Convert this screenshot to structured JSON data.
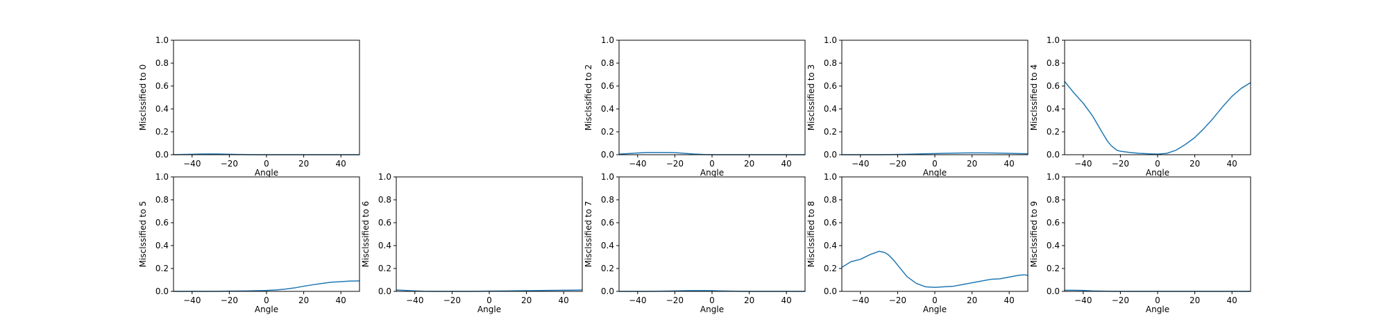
{
  "chart_data": [
    {
      "type": "line",
      "xlabel": "Angle",
      "ylabel": "Misclssified to 0",
      "xlim": [
        -50,
        50
      ],
      "ylim": [
        0,
        1
      ],
      "xticks": [
        -40,
        -20,
        0,
        20,
        40
      ],
      "yticks": [
        0,
        0.2,
        0.4,
        0.6,
        0.8,
        1.0
      ],
      "series": [
        {
          "color": "#1f77b4",
          "x": [
            -50,
            -45,
            -40,
            -35,
            -30,
            -25,
            -20,
            -15,
            -10,
            -5,
            0,
            5,
            10,
            15,
            20,
            25,
            30,
            35,
            40,
            45,
            50
          ],
          "y": [
            0.0,
            0.002,
            0.004,
            0.006,
            0.007,
            0.006,
            0.004,
            0.002,
            0.001,
            0.0,
            0.0,
            0.0,
            0.0,
            0.0,
            0.0,
            0.0,
            0.0,
            0.0,
            0.0,
            0.0,
            0.0
          ]
        }
      ]
    },
    null,
    {
      "type": "line",
      "xlabel": "Angle",
      "ylabel": "Misclssified to 2",
      "xlim": [
        -50,
        50
      ],
      "ylim": [
        0,
        1
      ],
      "xticks": [
        -40,
        -20,
        0,
        20,
        40
      ],
      "yticks": [
        0,
        0.2,
        0.4,
        0.6,
        0.8,
        1.0
      ],
      "series": [
        {
          "color": "#1f77b4",
          "x": [
            -50,
            -45,
            -40,
            -35,
            -30,
            -25,
            -20,
            -15,
            -10,
            -5,
            0,
            5,
            10,
            15,
            20,
            25,
            30,
            35,
            40,
            45,
            50
          ],
          "y": [
            0.005,
            0.01,
            0.015,
            0.02,
            0.02,
            0.02,
            0.018,
            0.012,
            0.006,
            0.002,
            0.0,
            0.0,
            0.0,
            0.0,
            0.0,
            0.0,
            0.0,
            0.0,
            0.0,
            0.0,
            0.0
          ]
        }
      ]
    },
    {
      "type": "line",
      "xlabel": "Angle",
      "ylabel": "Misclssified to 3",
      "xlim": [
        -50,
        50
      ],
      "ylim": [
        0,
        1
      ],
      "xticks": [
        -40,
        -20,
        0,
        20,
        40
      ],
      "yticks": [
        0,
        0.2,
        0.4,
        0.6,
        0.8,
        1.0
      ],
      "series": [
        {
          "color": "#1f77b4",
          "x": [
            -50,
            -45,
            -40,
            -35,
            -30,
            -25,
            -20,
            -15,
            -10,
            -5,
            0,
            5,
            10,
            15,
            20,
            25,
            30,
            35,
            40,
            45,
            50
          ],
          "y": [
            0.0,
            0.0,
            0.0,
            0.0,
            0.0,
            0.001,
            0.002,
            0.004,
            0.006,
            0.008,
            0.01,
            0.012,
            0.014,
            0.015,
            0.016,
            0.016,
            0.015,
            0.014,
            0.012,
            0.01,
            0.008
          ]
        }
      ]
    },
    {
      "type": "line",
      "xlabel": "Angle",
      "ylabel": "Misclssified to 4",
      "xlim": [
        -50,
        50
      ],
      "ylim": [
        0,
        1
      ],
      "xticks": [
        -40,
        -20,
        0,
        20,
        40
      ],
      "yticks": [
        0,
        0.2,
        0.4,
        0.6,
        0.8,
        1.0
      ],
      "series": [
        {
          "color": "#1f77b4",
          "x": [
            -50,
            -45,
            -40,
            -35,
            -30,
            -27,
            -25,
            -22,
            -20,
            -15,
            -10,
            -5,
            0,
            5,
            10,
            15,
            20,
            25,
            30,
            35,
            40,
            45,
            50
          ],
          "y": [
            0.64,
            0.54,
            0.45,
            0.34,
            0.2,
            0.12,
            0.08,
            0.04,
            0.03,
            0.02,
            0.012,
            0.008,
            0.005,
            0.012,
            0.04,
            0.09,
            0.15,
            0.23,
            0.32,
            0.42,
            0.51,
            0.58,
            0.63
          ]
        }
      ]
    },
    {
      "type": "line",
      "xlabel": "Angle",
      "ylabel": "Misclssified to 5",
      "xlim": [
        -50,
        50
      ],
      "ylim": [
        0,
        1
      ],
      "xticks": [
        -40,
        -20,
        0,
        20,
        40
      ],
      "yticks": [
        0,
        0.2,
        0.4,
        0.6,
        0.8,
        1.0
      ],
      "series": [
        {
          "color": "#1f77b4",
          "x": [
            -50,
            -45,
            -40,
            -35,
            -30,
            -25,
            -20,
            -15,
            -10,
            -5,
            0,
            5,
            10,
            15,
            20,
            25,
            30,
            35,
            40,
            45,
            50
          ],
          "y": [
            0.0,
            0.0,
            0.0,
            0.0,
            0.0,
            0.001,
            0.002,
            0.003,
            0.004,
            0.006,
            0.008,
            0.012,
            0.02,
            0.03,
            0.045,
            0.058,
            0.07,
            0.08,
            0.085,
            0.09,
            0.092
          ]
        }
      ]
    },
    {
      "type": "line",
      "xlabel": "Angle",
      "ylabel": "Misclssified to 6",
      "xlim": [
        -50,
        50
      ],
      "ylim": [
        0,
        1
      ],
      "xticks": [
        -40,
        -20,
        0,
        20,
        40
      ],
      "yticks": [
        0,
        0.2,
        0.4,
        0.6,
        0.8,
        1.0
      ],
      "series": [
        {
          "color": "#1f77b4",
          "x": [
            -50,
            -45,
            -40,
            -35,
            -30,
            -25,
            -20,
            -15,
            -10,
            -5,
            0,
            5,
            10,
            15,
            20,
            25,
            30,
            35,
            40,
            45,
            50
          ],
          "y": [
            0.012,
            0.008,
            0.004,
            0.001,
            0.0,
            0.0,
            0.0,
            0.0,
            0.0,
            0.001,
            0.002,
            0.003,
            0.004,
            0.005,
            0.006,
            0.007,
            0.008,
            0.009,
            0.01,
            0.011,
            0.012
          ]
        }
      ]
    },
    {
      "type": "line",
      "xlabel": "Angle",
      "ylabel": "Misclssified to 7",
      "xlim": [
        -50,
        50
      ],
      "ylim": [
        0,
        1
      ],
      "xticks": [
        -40,
        -20,
        0,
        20,
        40
      ],
      "yticks": [
        0,
        0.2,
        0.4,
        0.6,
        0.8,
        1.0
      ],
      "series": [
        {
          "color": "#1f77b4",
          "x": [
            -50,
            -45,
            -40,
            -35,
            -30,
            -25,
            -20,
            -15,
            -10,
            -5,
            0,
            5,
            10,
            15,
            20,
            25,
            30,
            35,
            40,
            45,
            50
          ],
          "y": [
            0.0,
            0.0,
            0.0,
            0.0,
            0.001,
            0.002,
            0.004,
            0.006,
            0.007,
            0.007,
            0.006,
            0.004,
            0.002,
            0.001,
            0.0,
            0.0,
            0.0,
            0.0,
            0.0,
            0.0,
            0.0
          ]
        }
      ]
    },
    {
      "type": "line",
      "xlabel": "Angle",
      "ylabel": "Misclssified to 8",
      "xlim": [
        -50,
        50
      ],
      "ylim": [
        0,
        1
      ],
      "xticks": [
        -40,
        -20,
        0,
        20,
        40
      ],
      "yticks": [
        0,
        0.2,
        0.4,
        0.6,
        0.8,
        1.0
      ],
      "series": [
        {
          "color": "#1f77b4",
          "x": [
            -50,
            -47,
            -45,
            -40,
            -35,
            -30,
            -27,
            -25,
            -22,
            -20,
            -17,
            -15,
            -10,
            -5,
            0,
            5,
            10,
            15,
            20,
            25,
            30,
            35,
            40,
            45,
            48,
            50
          ],
          "y": [
            0.21,
            0.24,
            0.26,
            0.28,
            0.32,
            0.35,
            0.34,
            0.32,
            0.27,
            0.23,
            0.17,
            0.13,
            0.07,
            0.04,
            0.035,
            0.04,
            0.045,
            0.06,
            0.075,
            0.09,
            0.105,
            0.11,
            0.125,
            0.14,
            0.145,
            0.14
          ]
        }
      ]
    },
    {
      "type": "line",
      "xlabel": "Angle",
      "ylabel": "Misclssified to 9",
      "xlim": [
        -50,
        50
      ],
      "ylim": [
        0,
        1
      ],
      "xticks": [
        -40,
        -20,
        0,
        20,
        40
      ],
      "yticks": [
        0,
        0.2,
        0.4,
        0.6,
        0.8,
        1.0
      ],
      "series": [
        {
          "color": "#1f77b4",
          "x": [
            -50,
            -45,
            -40,
            -35,
            -30,
            -25,
            -20,
            -15,
            -10,
            -5,
            0,
            5,
            10,
            15,
            20,
            25,
            30,
            35,
            40,
            45,
            50
          ],
          "y": [
            0.01,
            0.01,
            0.008,
            0.004,
            0.002,
            0.001,
            0.0,
            0.0,
            0.0,
            0.0,
            0.0,
            0.0,
            0.0,
            0.0,
            0.0,
            0.0,
            0.0,
            0.0,
            0.0,
            0.0,
            0.0
          ]
        }
      ]
    }
  ]
}
